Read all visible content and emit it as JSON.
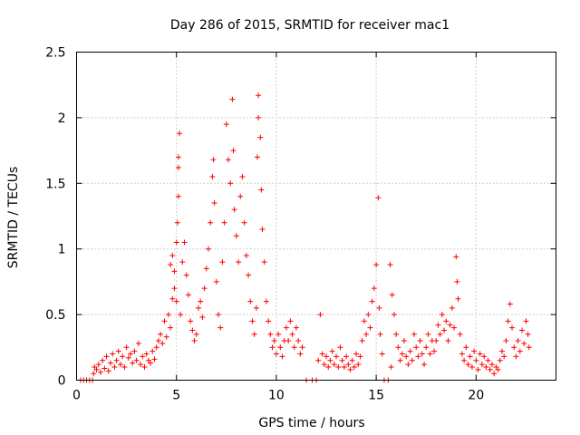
{
  "chart_data": {
    "type": "scatter",
    "title": "Day 286 of 2015, SRMTID for receiver mac1",
    "xlabel": "GPS time / hours",
    "ylabel": "SRMTID / TECUs",
    "xlim": [
      0,
      24
    ],
    "ylim": [
      0,
      2.5
    ],
    "x_ticks": [
      0,
      5,
      10,
      15,
      20
    ],
    "x_tick_labels": [
      "0",
      "5",
      "10",
      "15",
      "20"
    ],
    "y_ticks": [
      0,
      0.5,
      1,
      1.5,
      2,
      2.5
    ],
    "y_tick_labels": [
      "0",
      "0.5",
      "1",
      "1.5",
      "2",
      "2.5"
    ],
    "grid": true,
    "marker": "plus",
    "color": "#ff0000",
    "series": [
      {
        "name": "SRMTID",
        "points": [
          [
            0.2,
            0.0
          ],
          [
            0.35,
            0.0
          ],
          [
            0.5,
            0.0
          ],
          [
            0.65,
            0.0
          ],
          [
            0.8,
            0.0
          ],
          [
            0.85,
            0.05
          ],
          [
            0.9,
            0.1
          ],
          [
            1.0,
            0.08
          ],
          [
            1.1,
            0.12
          ],
          [
            1.2,
            0.06
          ],
          [
            1.3,
            0.15
          ],
          [
            1.4,
            0.09
          ],
          [
            1.5,
            0.18
          ],
          [
            1.6,
            0.07
          ],
          [
            1.7,
            0.13
          ],
          [
            1.8,
            0.2
          ],
          [
            1.9,
            0.1
          ],
          [
            2.0,
            0.15
          ],
          [
            2.1,
            0.22
          ],
          [
            2.2,
            0.12
          ],
          [
            2.3,
            0.18
          ],
          [
            2.4,
            0.1
          ],
          [
            2.5,
            0.25
          ],
          [
            2.6,
            0.17
          ],
          [
            2.7,
            0.2
          ],
          [
            2.8,
            0.13
          ],
          [
            2.9,
            0.22
          ],
          [
            3.0,
            0.15
          ],
          [
            3.1,
            0.28
          ],
          [
            3.2,
            0.12
          ],
          [
            3.3,
            0.18
          ],
          [
            3.4,
            0.1
          ],
          [
            3.5,
            0.2
          ],
          [
            3.6,
            0.15
          ],
          [
            3.7,
            0.13
          ],
          [
            3.8,
            0.22
          ],
          [
            3.9,
            0.16
          ],
          [
            4.0,
            0.25
          ],
          [
            4.1,
            0.3
          ],
          [
            4.2,
            0.35
          ],
          [
            4.3,
            0.28
          ],
          [
            4.4,
            0.45
          ],
          [
            4.5,
            0.33
          ],
          [
            4.6,
            0.5
          ],
          [
            4.7,
            0.4
          ],
          [
            4.8,
            0.62
          ],
          [
            4.9,
            0.7
          ],
          [
            4.7,
            0.88
          ],
          [
            4.8,
            0.95
          ],
          [
            4.9,
            0.83
          ],
          [
            5.0,
            1.05
          ],
          [
            5.05,
            1.2
          ],
          [
            5.1,
            1.4
          ],
          [
            5.1,
            1.7
          ],
          [
            5.15,
            1.88
          ],
          [
            5.1,
            1.62
          ],
          [
            5.0,
            0.6
          ],
          [
            5.2,
            0.5
          ],
          [
            5.3,
            0.9
          ],
          [
            5.4,
            1.05
          ],
          [
            5.5,
            0.8
          ],
          [
            5.6,
            0.65
          ],
          [
            5.7,
            0.45
          ],
          [
            5.8,
            0.38
          ],
          [
            5.9,
            0.3
          ],
          [
            6.0,
            0.35
          ],
          [
            6.1,
            0.55
          ],
          [
            6.2,
            0.6
          ],
          [
            6.3,
            0.48
          ],
          [
            6.4,
            0.7
          ],
          [
            6.5,
            0.85
          ],
          [
            6.6,
            1.0
          ],
          [
            6.7,
            1.2
          ],
          [
            6.8,
            1.55
          ],
          [
            6.85,
            1.68
          ],
          [
            6.9,
            1.35
          ],
          [
            7.0,
            0.75
          ],
          [
            7.1,
            0.5
          ],
          [
            7.2,
            0.4
          ],
          [
            7.3,
            0.9
          ],
          [
            7.4,
            1.2
          ],
          [
            7.5,
            1.95
          ],
          [
            7.6,
            1.68
          ],
          [
            7.7,
            1.5
          ],
          [
            7.8,
            2.14
          ],
          [
            7.85,
            1.75
          ],
          [
            7.9,
            1.3
          ],
          [
            8.0,
            1.1
          ],
          [
            8.1,
            0.9
          ],
          [
            8.2,
            1.4
          ],
          [
            8.3,
            1.55
          ],
          [
            8.4,
            1.2
          ],
          [
            8.5,
            0.95
          ],
          [
            8.6,
            0.8
          ],
          [
            8.7,
            0.6
          ],
          [
            8.8,
            0.45
          ],
          [
            8.9,
            0.35
          ],
          [
            9.0,
            0.55
          ],
          [
            9.05,
            1.7
          ],
          [
            9.1,
            2.0
          ],
          [
            9.1,
            2.17
          ],
          [
            9.2,
            1.85
          ],
          [
            9.25,
            1.45
          ],
          [
            9.3,
            1.15
          ],
          [
            9.4,
            0.9
          ],
          [
            9.5,
            0.6
          ],
          [
            9.6,
            0.45
          ],
          [
            9.7,
            0.35
          ],
          [
            9.8,
            0.25
          ],
          [
            9.9,
            0.3
          ],
          [
            10.0,
            0.2
          ],
          [
            10.1,
            0.35
          ],
          [
            10.2,
            0.25
          ],
          [
            10.3,
            0.18
          ],
          [
            10.4,
            0.3
          ],
          [
            10.5,
            0.4
          ],
          [
            10.6,
            0.3
          ],
          [
            10.7,
            0.45
          ],
          [
            10.8,
            0.35
          ],
          [
            10.9,
            0.25
          ],
          [
            11.0,
            0.4
          ],
          [
            11.1,
            0.3
          ],
          [
            11.2,
            0.2
          ],
          [
            11.3,
            0.25
          ],
          [
            11.5,
            0.0
          ],
          [
            11.8,
            0.0
          ],
          [
            12.0,
            0.0
          ],
          [
            12.1,
            0.15
          ],
          [
            12.2,
            0.5
          ],
          [
            12.3,
            0.2
          ],
          [
            12.4,
            0.12
          ],
          [
            12.5,
            0.18
          ],
          [
            12.6,
            0.1
          ],
          [
            12.7,
            0.15
          ],
          [
            12.8,
            0.22
          ],
          [
            12.9,
            0.12
          ],
          [
            13.0,
            0.18
          ],
          [
            13.1,
            0.1
          ],
          [
            13.2,
            0.25
          ],
          [
            13.3,
            0.15
          ],
          [
            13.4,
            0.1
          ],
          [
            13.5,
            0.18
          ],
          [
            13.6,
            0.12
          ],
          [
            13.7,
            0.08
          ],
          [
            13.8,
            0.15
          ],
          [
            13.9,
            0.1
          ],
          [
            14.0,
            0.2
          ],
          [
            14.1,
            0.12
          ],
          [
            14.2,
            0.18
          ],
          [
            14.3,
            0.3
          ],
          [
            14.4,
            0.45
          ],
          [
            14.5,
            0.35
          ],
          [
            14.6,
            0.5
          ],
          [
            14.7,
            0.4
          ],
          [
            14.8,
            0.6
          ],
          [
            14.9,
            0.7
          ],
          [
            15.0,
            0.88
          ],
          [
            15.1,
            1.39
          ],
          [
            15.15,
            0.55
          ],
          [
            15.2,
            0.35
          ],
          [
            15.3,
            0.2
          ],
          [
            15.4,
            0.0
          ],
          [
            15.6,
            0.0
          ],
          [
            15.7,
            0.88
          ],
          [
            15.75,
            0.1
          ],
          [
            15.8,
            0.65
          ],
          [
            15.9,
            0.5
          ],
          [
            16.0,
            0.35
          ],
          [
            16.1,
            0.25
          ],
          [
            16.2,
            0.15
          ],
          [
            16.3,
            0.2
          ],
          [
            16.4,
            0.3
          ],
          [
            16.5,
            0.18
          ],
          [
            16.6,
            0.12
          ],
          [
            16.7,
            0.22
          ],
          [
            16.8,
            0.15
          ],
          [
            16.9,
            0.35
          ],
          [
            17.0,
            0.25
          ],
          [
            17.1,
            0.18
          ],
          [
            17.2,
            0.3
          ],
          [
            17.3,
            0.2
          ],
          [
            17.4,
            0.12
          ],
          [
            17.5,
            0.25
          ],
          [
            17.6,
            0.35
          ],
          [
            17.7,
            0.2
          ],
          [
            17.8,
            0.3
          ],
          [
            17.9,
            0.22
          ],
          [
            18.0,
            0.3
          ],
          [
            18.1,
            0.42
          ],
          [
            18.2,
            0.35
          ],
          [
            18.3,
            0.5
          ],
          [
            18.4,
            0.38
          ],
          [
            18.5,
            0.45
          ],
          [
            18.6,
            0.3
          ],
          [
            18.7,
            0.42
          ],
          [
            18.8,
            0.55
          ],
          [
            18.9,
            0.4
          ],
          [
            19.0,
            0.94
          ],
          [
            19.05,
            0.75
          ],
          [
            19.1,
            0.62
          ],
          [
            19.2,
            0.35
          ],
          [
            19.3,
            0.2
          ],
          [
            19.4,
            0.15
          ],
          [
            19.5,
            0.25
          ],
          [
            19.6,
            0.12
          ],
          [
            19.7,
            0.18
          ],
          [
            19.8,
            0.1
          ],
          [
            19.9,
            0.22
          ],
          [
            20.0,
            0.15
          ],
          [
            20.1,
            0.08
          ],
          [
            20.2,
            0.2
          ],
          [
            20.3,
            0.12
          ],
          [
            20.4,
            0.18
          ],
          [
            20.5,
            0.1
          ],
          [
            20.6,
            0.15
          ],
          [
            20.7,
            0.08
          ],
          [
            20.8,
            0.12
          ],
          [
            20.9,
            0.05
          ],
          [
            21.0,
            0.1
          ],
          [
            21.1,
            0.08
          ],
          [
            21.2,
            0.15
          ],
          [
            21.3,
            0.22
          ],
          [
            21.4,
            0.18
          ],
          [
            21.5,
            0.3
          ],
          [
            21.6,
            0.45
          ],
          [
            21.7,
            0.58
          ],
          [
            21.8,
            0.4
          ],
          [
            21.9,
            0.25
          ],
          [
            22.0,
            0.18
          ],
          [
            22.1,
            0.3
          ],
          [
            22.2,
            0.22
          ],
          [
            22.3,
            0.38
          ],
          [
            22.4,
            0.28
          ],
          [
            22.5,
            0.45
          ],
          [
            22.6,
            0.35
          ],
          [
            22.65,
            0.25
          ]
        ]
      }
    ]
  }
}
